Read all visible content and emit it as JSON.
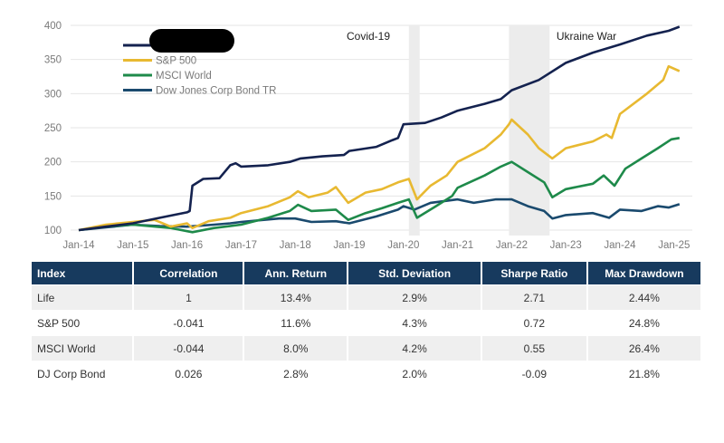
{
  "chart_data": {
    "type": "line",
    "title": "",
    "xlabel": "",
    "ylabel": "",
    "ylim": [
      100,
      400
    ],
    "yticks": [
      "100",
      "150",
      "200",
      "250",
      "300",
      "350",
      "400"
    ],
    "xticks": [
      "Jan-14",
      "Jan-15",
      "Jan-16",
      "Jan-17",
      "Jan-18",
      "Jan-19",
      "Jan-20",
      "Jan-21",
      "Jan-22",
      "Jan-23",
      "Jan-24",
      "Jan-25"
    ],
    "grid": "horizontal",
    "legend_position": "top-left",
    "annotations": [
      {
        "label": "Covid-19",
        "from": 2020.1,
        "to": 2020.3
      },
      {
        "label": "Ukraine War",
        "from": 2021.95,
        "to": 2022.7
      }
    ],
    "series": [
      {
        "name": "",
        "redacted": true,
        "color": "#14224f",
        "x": [
          2014,
          2014.5,
          2015,
          2015.5,
          2015.75,
          2016,
          2016.05,
          2016.1,
          2016.3,
          2016.6,
          2016.8,
          2016.9,
          2017,
          2017.5,
          2017.9,
          2018.1,
          2018.5,
          2018.9,
          2019,
          2019.5,
          2019.8,
          2019.9,
          2020,
          2020.4,
          2020.7,
          2021,
          2021.5,
          2021.8,
          2022,
          2022.5,
          2023,
          2023.5,
          2024,
          2024.5,
          2024.9,
          2025.1
        ],
        "y": [
          100,
          105,
          110,
          118,
          122,
          126,
          128,
          165,
          175,
          176,
          195,
          198,
          193,
          195,
          200,
          205,
          208,
          210,
          216,
          222,
          232,
          235,
          255,
          257,
          265,
          275,
          285,
          292,
          305,
          320,
          345,
          360,
          372,
          385,
          392,
          398
        ]
      },
      {
        "name": "S&P 500",
        "color": "#e8b931",
        "x": [
          2014,
          2014.5,
          2015,
          2015.4,
          2015.7,
          2016,
          2016.1,
          2016.4,
          2016.8,
          2017,
          2017.5,
          2017.9,
          2018.05,
          2018.25,
          2018.6,
          2018.75,
          2018.98,
          2019.3,
          2019.6,
          2019.9,
          2020.1,
          2020.25,
          2020.5,
          2020.8,
          2021,
          2021.5,
          2021.8,
          2021.95,
          2022,
          2022.3,
          2022.5,
          2022.75,
          2023,
          2023.5,
          2023.75,
          2023.85,
          2024,
          2024.5,
          2024.8,
          2024.9,
          2025.1
        ],
        "y": [
          100,
          108,
          112,
          115,
          105,
          110,
          103,
          113,
          118,
          125,
          135,
          148,
          157,
          148,
          155,
          163,
          140,
          155,
          160,
          170,
          175,
          145,
          165,
          180,
          200,
          220,
          240,
          255,
          262,
          240,
          220,
          205,
          220,
          230,
          240,
          235,
          270,
          300,
          320,
          340,
          333
        ]
      },
      {
        "name": "MSCI World",
        "color": "#1e8a4a",
        "x": [
          2014,
          2014.5,
          2015,
          2015.7,
          2016.1,
          2016.5,
          2017,
          2017.5,
          2017.9,
          2018.05,
          2018.3,
          2018.75,
          2018.98,
          2019.3,
          2019.6,
          2019.9,
          2020.1,
          2020.25,
          2020.6,
          2020.9,
          2021,
          2021.5,
          2021.8,
          2022,
          2022.3,
          2022.6,
          2022.75,
          2023,
          2023.5,
          2023.7,
          2023.9,
          2024.1,
          2024.4,
          2024.7,
          2024.95,
          2025.1
        ],
        "y": [
          100,
          105,
          108,
          103,
          97,
          103,
          108,
          118,
          128,
          137,
          128,
          130,
          115,
          125,
          132,
          140,
          145,
          118,
          135,
          150,
          162,
          180,
          193,
          200,
          185,
          170,
          148,
          160,
          168,
          180,
          165,
          190,
          205,
          220,
          233,
          235
        ]
      },
      {
        "name": "Dow Jones Corp Bond TR",
        "color": "#1a4a6e",
        "x": [
          2014,
          2014.5,
          2015,
          2015.5,
          2016,
          2016.5,
          2016.8,
          2017,
          2017.7,
          2018,
          2018.3,
          2018.75,
          2019,
          2019.5,
          2019.9,
          2020,
          2020.2,
          2020.5,
          2021,
          2021.3,
          2021.7,
          2022,
          2022.3,
          2022.6,
          2022.75,
          2023,
          2023.5,
          2023.8,
          2024,
          2024.4,
          2024.7,
          2024.9,
          2025.1
        ],
        "y": [
          100,
          104,
          108,
          106,
          105,
          108,
          110,
          112,
          117,
          117,
          112,
          113,
          110,
          120,
          130,
          135,
          130,
          140,
          145,
          140,
          145,
          145,
          135,
          128,
          117,
          122,
          125,
          118,
          130,
          128,
          135,
          133,
          138
        ]
      }
    ]
  },
  "table": {
    "headers": [
      "Index",
      "Correlation",
      "Ann. Return",
      "Std. Deviation",
      "Sharpe Ratio",
      "Max Drawdown"
    ],
    "rows": [
      [
        "Life",
        "1",
        "13.4%",
        "2.9%",
        "2.71",
        "2.44%"
      ],
      [
        "S&P 500",
        "-0.041",
        "11.6%",
        "4.3%",
        "0.72",
        "24.8%"
      ],
      [
        "MSCI World",
        "-0.044",
        "8.0%",
        "4.2%",
        "0.55",
        "26.4%"
      ],
      [
        "DJ Corp Bond",
        "0.026",
        "2.8%",
        "2.0%",
        "-0.09",
        "21.8%"
      ]
    ]
  }
}
